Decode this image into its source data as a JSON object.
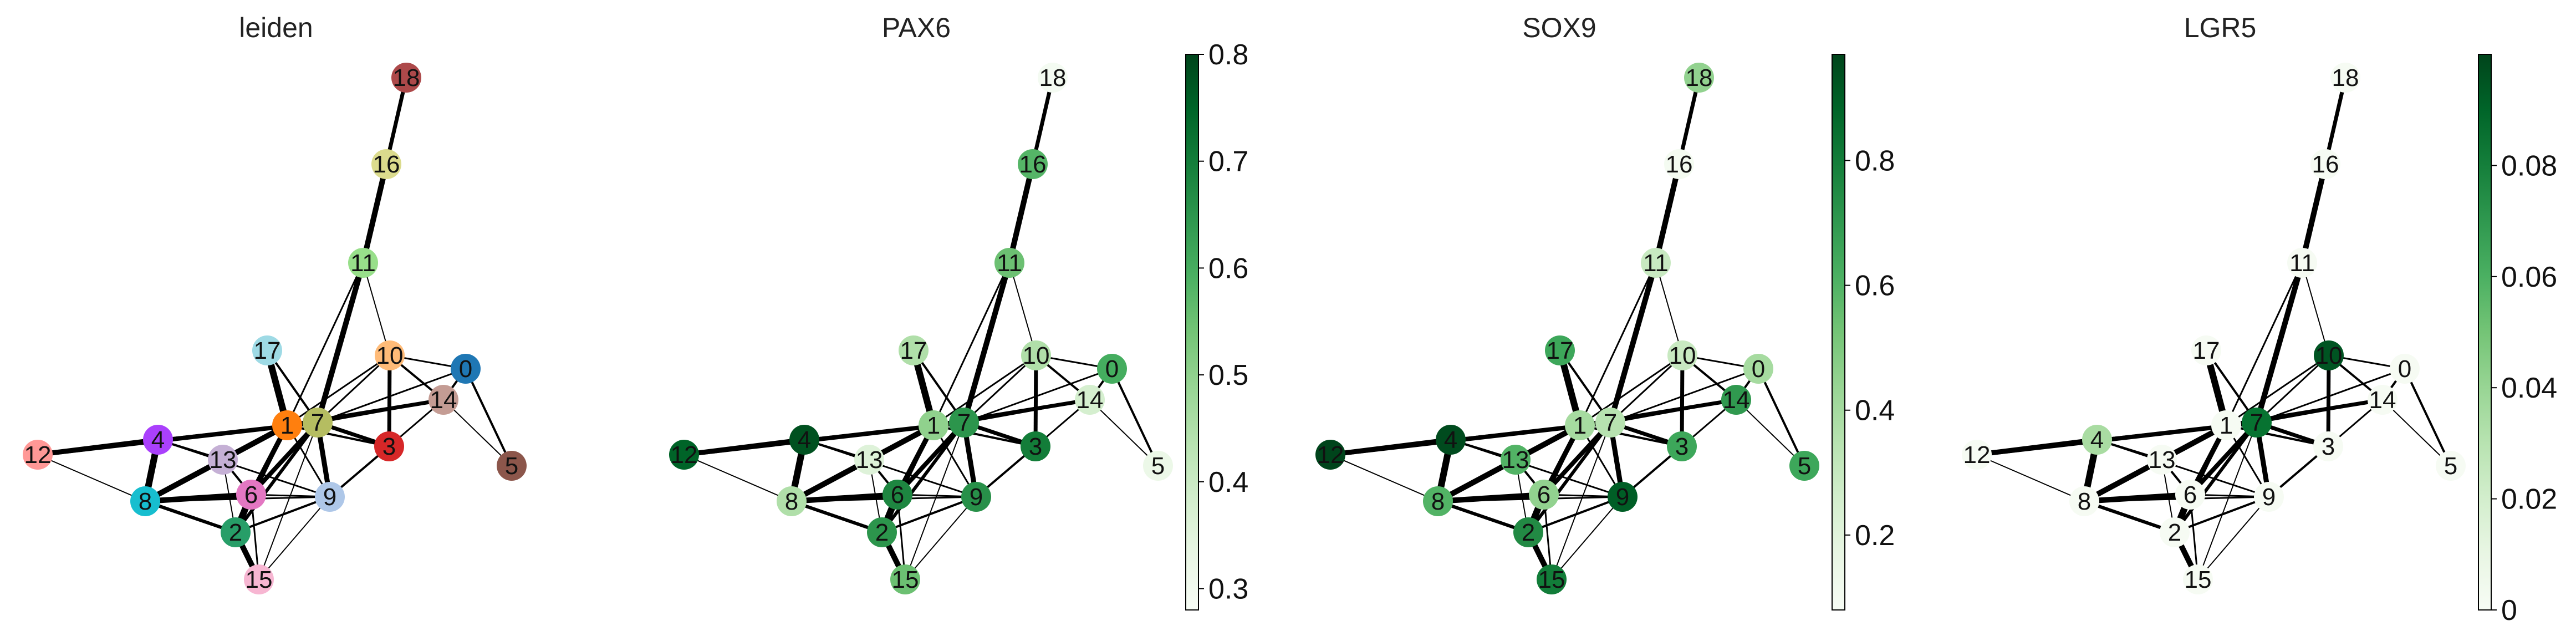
{
  "chart_data": [
    {
      "type": "graph",
      "title": "leiden",
      "coloring": "categorical",
      "node_colors": {
        "0": "#1f77b4",
        "1": "#ff7f0e",
        "2": "#279e68",
        "3": "#d62728",
        "4": "#aa40fc",
        "5": "#8c564b",
        "6": "#e377c2",
        "7": "#b5bd61",
        "8": "#17becf",
        "9": "#aec7e8",
        "10": "#ffbb78",
        "11": "#98df8a",
        "12": "#ff9896",
        "13": "#c5b0d5",
        "14": "#c49c94",
        "15": "#f7b6d2",
        "16": "#dbdb8d",
        "17": "#9edae5",
        "18": "#ad494a"
      }
    },
    {
      "type": "graph",
      "title": "PAX6",
      "coloring": "continuous",
      "colormap": "Greens",
      "vmin": 0.28,
      "vmax": 0.8,
      "colorbar_ticks": [
        {
          "value": 0.3,
          "label": "0.3"
        },
        {
          "value": 0.4,
          "label": "0.4"
        },
        {
          "value": 0.5,
          "label": "0.5"
        },
        {
          "value": 0.6,
          "label": "0.6"
        },
        {
          "value": 0.7,
          "label": "0.7"
        },
        {
          "value": 0.8,
          "label": "0.8"
        }
      ],
      "node_values": {
        "0": 0.6,
        "1": 0.5,
        "2": 0.65,
        "3": 0.7,
        "4": 0.78,
        "5": 0.32,
        "6": 0.68,
        "7": 0.65,
        "8": 0.45,
        "9": 0.66,
        "10": 0.45,
        "11": 0.55,
        "12": 0.75,
        "13": 0.36,
        "14": 0.38,
        "15": 0.55,
        "16": 0.58,
        "17": 0.45,
        "18": 0.29
      }
    },
    {
      "type": "graph",
      "title": "SOX9",
      "coloring": "continuous",
      "colormap": "Greens",
      "vmin": 0.08,
      "vmax": 0.97,
      "colorbar_ticks": [
        {
          "value": 0.2,
          "label": "0.2"
        },
        {
          "value": 0.4,
          "label": "0.4"
        },
        {
          "value": 0.6,
          "label": "0.6"
        },
        {
          "value": 0.8,
          "label": "0.8"
        }
      ],
      "node_values": {
        "0": 0.4,
        "1": 0.4,
        "2": 0.75,
        "3": 0.65,
        "4": 0.95,
        "5": 0.65,
        "6": 0.45,
        "7": 0.35,
        "8": 0.6,
        "9": 0.9,
        "10": 0.3,
        "11": 0.3,
        "12": 0.97,
        "13": 0.6,
        "14": 0.7,
        "15": 0.8,
        "16": 0.1,
        "17": 0.65,
        "18": 0.45
      }
    },
    {
      "type": "graph",
      "title": "LGR5",
      "coloring": "continuous",
      "colormap": "Greens",
      "vmin": 0.0,
      "vmax": 0.1,
      "colorbar_ticks": [
        {
          "value": 0.0,
          "label": "0"
        },
        {
          "value": 0.02,
          "label": "0.02"
        },
        {
          "value": 0.04,
          "label": "0.04"
        },
        {
          "value": 0.06,
          "label": "0.06"
        },
        {
          "value": 0.08,
          "label": "0.08"
        }
      ],
      "node_values": {
        "0": 0.001,
        "1": 0.001,
        "2": 0.001,
        "3": 0.001,
        "4": 0.035,
        "5": 0.001,
        "6": 0.001,
        "7": 0.085,
        "8": 0.001,
        "9": 0.001,
        "10": 0.095,
        "11": 0.001,
        "12": 0.001,
        "13": 0.001,
        "14": 0.001,
        "15": 0.001,
        "16": 0.001,
        "17": 0.001,
        "18": 0.001
      }
    }
  ],
  "node_labels": [
    "0",
    "1",
    "2",
    "3",
    "4",
    "5",
    "6",
    "7",
    "8",
    "9",
    "10",
    "11",
    "12",
    "13",
    "14",
    "15",
    "16",
    "17",
    "18"
  ],
  "edges": [
    [
      "18",
      "16",
      7
    ],
    [
      "16",
      "11",
      10
    ],
    [
      "11",
      "7",
      10
    ],
    [
      "11",
      "1",
      3
    ],
    [
      "11",
      "10",
      2
    ],
    [
      "17",
      "1",
      12
    ],
    [
      "17",
      "7",
      4
    ],
    [
      "10",
      "0",
      3
    ],
    [
      "10",
      "14",
      4
    ],
    [
      "10",
      "7",
      3
    ],
    [
      "10",
      "3",
      7
    ],
    [
      "10",
      "1",
      3
    ],
    [
      "0",
      "14",
      4
    ],
    [
      "0",
      "7",
      3
    ],
    [
      "0",
      "5",
      4
    ],
    [
      "14",
      "5",
      2
    ],
    [
      "14",
      "1",
      7
    ],
    [
      "14",
      "7",
      4
    ],
    [
      "14",
      "3",
      3
    ],
    [
      "12",
      "4",
      9
    ],
    [
      "12",
      "8",
      2
    ],
    [
      "12",
      "7",
      8
    ],
    [
      "12",
      "1",
      3
    ],
    [
      "4",
      "13",
      4
    ],
    [
      "4",
      "8",
      12
    ],
    [
      "4",
      "1",
      4
    ],
    [
      "4",
      "9",
      3
    ],
    [
      "13",
      "8",
      5
    ],
    [
      "13",
      "6",
      4
    ],
    [
      "13",
      "2",
      2
    ],
    [
      "13",
      "1",
      2
    ],
    [
      "1",
      "7",
      6
    ],
    [
      "1",
      "3",
      4
    ],
    [
      "1",
      "6",
      9
    ],
    [
      "1",
      "8",
      10
    ],
    [
      "1",
      "2",
      5
    ],
    [
      "1",
      "9",
      3
    ],
    [
      "7",
      "3",
      7
    ],
    [
      "7",
      "9",
      9
    ],
    [
      "7",
      "6",
      8
    ],
    [
      "7",
      "2",
      6
    ],
    [
      "7",
      "15",
      2
    ],
    [
      "3",
      "9",
      4
    ],
    [
      "8",
      "2",
      6
    ],
    [
      "8",
      "6",
      10
    ],
    [
      "8",
      "9",
      3
    ],
    [
      "6",
      "2",
      12
    ],
    [
      "6",
      "9",
      3
    ],
    [
      "6",
      "15",
      3
    ],
    [
      "2",
      "9",
      4
    ],
    [
      "2",
      "15",
      10
    ],
    [
      "9",
      "15",
      2
    ]
  ]
}
